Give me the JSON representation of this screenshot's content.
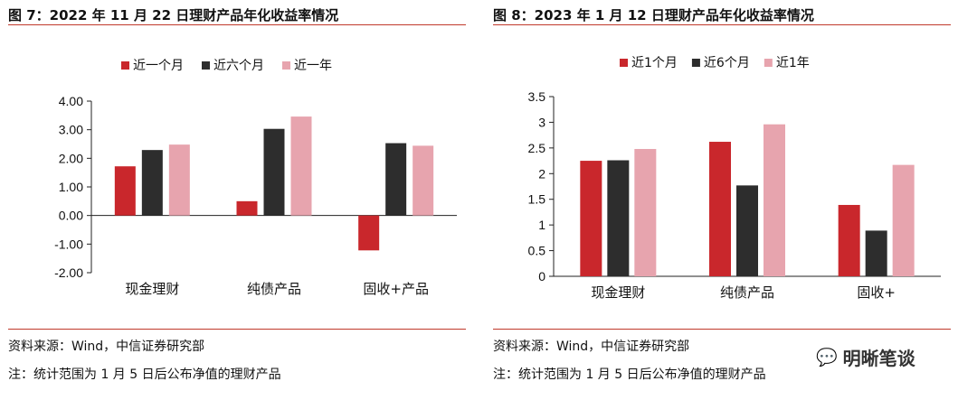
{
  "watermark": {
    "icon": "wechat-icon",
    "text": "明晰笔谈"
  },
  "chart_data": [
    {
      "type": "bar",
      "title": "图 7：2022 年 11 月 22 日理财产品年化收益率情况",
      "categories": [
        "现金理财",
        "纯债产品",
        "固收+产品"
      ],
      "series": [
        {
          "name": "近一个月",
          "color": "#c9272c",
          "values": [
            1.72,
            0.5,
            -1.22
          ]
        },
        {
          "name": "近六个月",
          "color": "#2d2d2d",
          "values": [
            2.29,
            3.03,
            2.53
          ]
        },
        {
          "name": "近一年",
          "color": "#e7a4ae",
          "values": [
            2.48,
            3.46,
            2.44
          ]
        }
      ],
      "ylim": [
        -2,
        4
      ],
      "yticks": [
        4,
        3,
        2,
        1,
        0,
        -1,
        -2
      ],
      "ytick_labels": [
        "4.00",
        "3.00",
        "2.00",
        "1.00",
        "0.00",
        "-1.00",
        "-2.00"
      ],
      "xlabel": "",
      "ylabel": "",
      "legend_position": "top",
      "source": "资料来源：Wind，中信证券研究部",
      "note": "注：统计范围为 1 月 5 日后公布净值的理财产品"
    },
    {
      "type": "bar",
      "title": "图 8：2023 年 1 月 12 日理财产品年化收益率情况",
      "categories": [
        "现金理财",
        "纯债产品",
        "固收+"
      ],
      "series": [
        {
          "name": "近1个月",
          "color": "#c9272c",
          "values": [
            2.25,
            2.62,
            1.39
          ]
        },
        {
          "name": "近6个月",
          "color": "#2d2d2d",
          "values": [
            2.26,
            1.77,
            0.89
          ]
        },
        {
          "name": "近1年",
          "color": "#e7a4ae",
          "values": [
            2.48,
            2.96,
            2.17
          ]
        }
      ],
      "ylim": [
        0,
        3.5
      ],
      "yticks": [
        3.5,
        3,
        2.5,
        2,
        1.5,
        1,
        0.5,
        0
      ],
      "ytick_labels": [
        "3.5",
        "3",
        "2.5",
        "2",
        "1.5",
        "1",
        "0.5",
        "0"
      ],
      "xlabel": "",
      "ylabel": "",
      "legend_position": "top",
      "source": "资料来源：Wind，中信证券研究部",
      "note": "注：统计范围为 1 月 5 日后公布净值的理财产品"
    }
  ]
}
